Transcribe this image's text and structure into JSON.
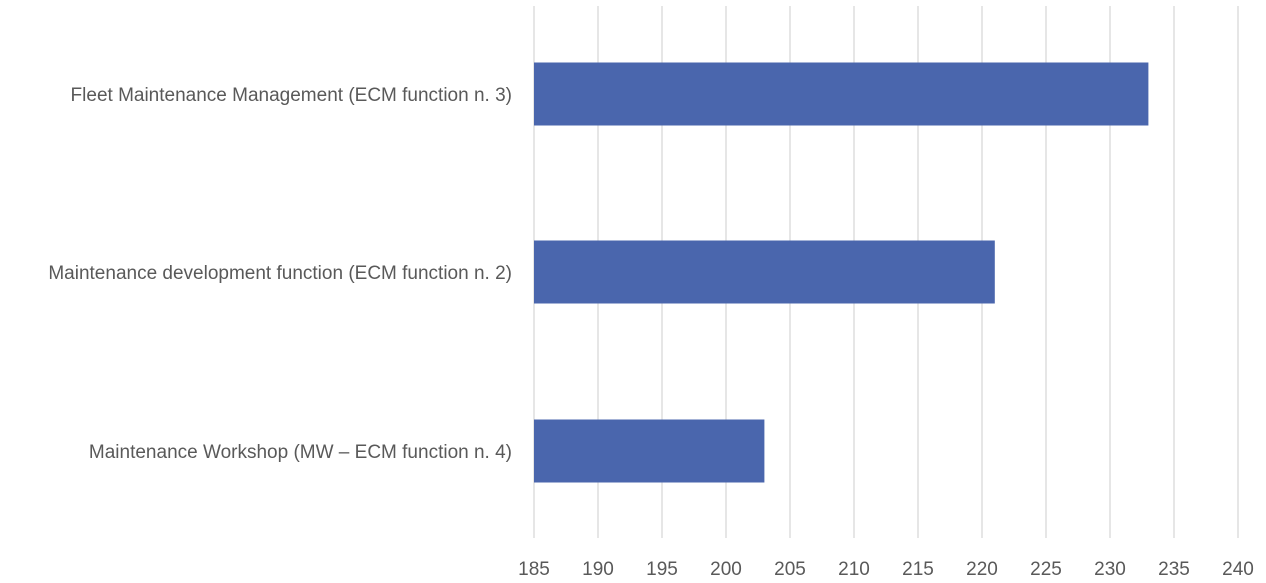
{
  "chart_data": {
    "type": "bar",
    "orientation": "horizontal",
    "categories": [
      "Fleet Maintenance Management (ECM function n. 3)",
      "Maintenance development function (ECM function n. 2)",
      "Maintenance Workshop (MW – ECM function n. 4)"
    ],
    "values": [
      233,
      221,
      203
    ],
    "title": "",
    "xlabel": "",
    "ylabel": "",
    "xlim": [
      185,
      240
    ],
    "xticks": [
      185,
      190,
      195,
      200,
      205,
      210,
      215,
      220,
      225,
      230,
      235,
      240
    ],
    "grid": "vertical",
    "legend": "none",
    "bar_color": "#4a66ad",
    "grid_color": "#d9d9d9",
    "text_color": "#595959"
  }
}
